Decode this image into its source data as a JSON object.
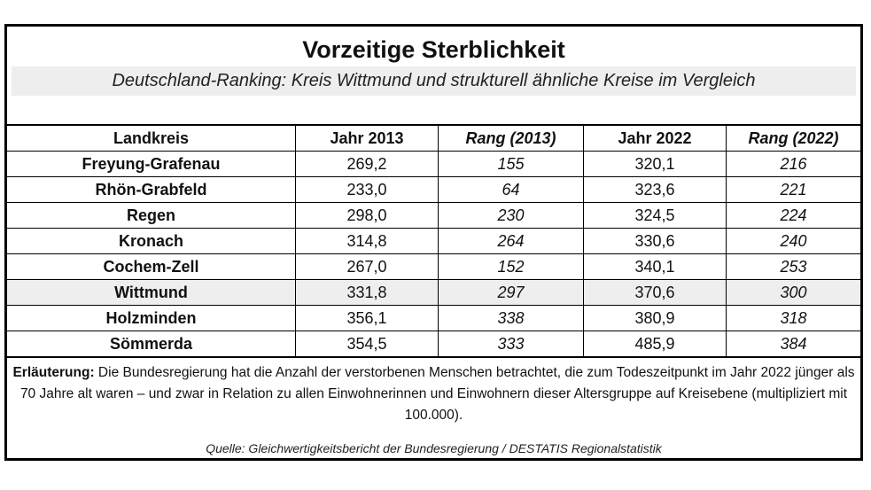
{
  "title": "Vorzeitige Sterblichkeit",
  "subtitle": "Deutschland-Ranking: Kreis Wittmund und strukturell ähnliche Kreise im Vergleich",
  "table": {
    "headers": [
      "Landkreis",
      "Jahr 2013",
      "Rang (2013)",
      "Jahr 2022",
      "Rang (2022)"
    ],
    "rows": [
      [
        "Freyung-Grafenau",
        "269,2",
        "155",
        "320,1",
        "216"
      ],
      [
        "Rhön-Grabfeld",
        "233,0",
        "64",
        "323,6",
        "221"
      ],
      [
        "Regen",
        "298,0",
        "230",
        "324,5",
        "224"
      ],
      [
        "Kronach",
        "314,8",
        "264",
        "330,6",
        "240"
      ],
      [
        "Cochem-Zell",
        "267,0",
        "152",
        "340,1",
        "253"
      ],
      [
        "Wittmund",
        "331,8",
        "297",
        "370,6",
        "300"
      ],
      [
        "Holzminden",
        "356,1",
        "338",
        "380,9",
        "318"
      ],
      [
        "Sömmerda",
        "354,5",
        "333",
        "485,9",
        "384"
      ]
    ]
  },
  "note": {
    "label": "Erläuterung:",
    "text": " Die Bundesregierung hat die Anzahl der verstorbenen Menschen betrachtet, die zum Todeszeitpunkt im Jahr 2022 jünger als 70 Jahre alt waren – und zwar in Relation zu allen Einwohnerinnen und Einwohnern dieser Altersgruppe auf Kreisebene (multipliziert mit 100.000)."
  },
  "source": "Quelle: Gleichwertigkeitsbericht der Bundesregierung / DESTATIS Regionalstatistik"
}
